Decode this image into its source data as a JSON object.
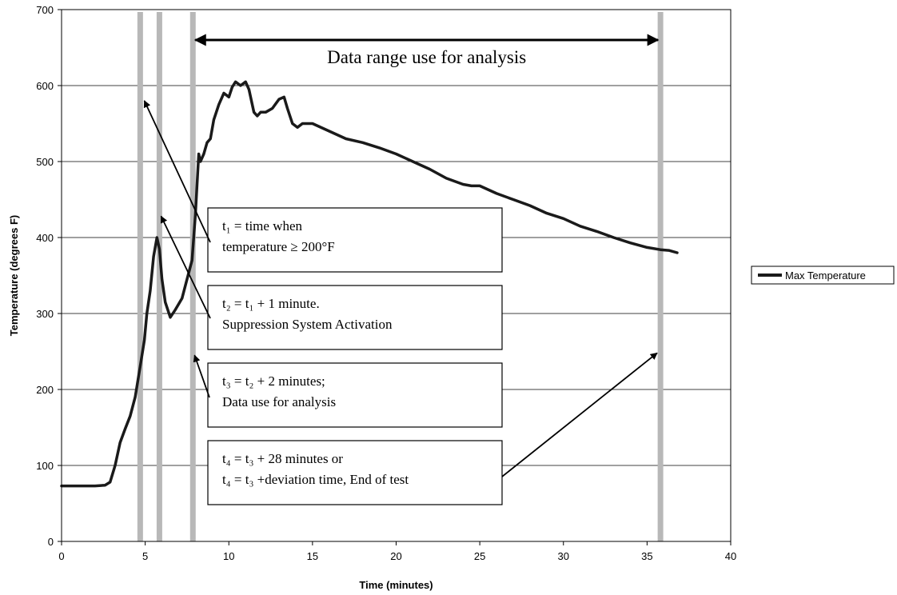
{
  "chart_data": {
    "type": "line",
    "xlabel": "Time (minutes)",
    "ylabel": "Temperature (degrees F)",
    "xlim": [
      0,
      40
    ],
    "ylim": [
      0,
      700
    ],
    "x_ticks": [
      0,
      5,
      10,
      15,
      20,
      25,
      30,
      35,
      40
    ],
    "y_ticks": [
      0,
      100,
      200,
      300,
      400,
      500,
      600,
      700
    ],
    "grid": "horizontal",
    "legend_position": "right",
    "series": [
      {
        "name": "Max Temperature",
        "color": "#1a1a1a",
        "x": [
          0,
          1,
          2,
          2.6,
          2.9,
          3.2,
          3.5,
          3.8,
          4.1,
          4.4,
          4.7,
          4.95,
          5.1,
          5.3,
          5.5,
          5.7,
          5.85,
          6.0,
          6.2,
          6.5,
          6.8,
          7.2,
          7.5,
          7.8,
          8.0,
          8.2,
          8.3,
          8.5,
          8.7,
          8.9,
          9.1,
          9.4,
          9.7,
          10.0,
          10.2,
          10.4,
          10.7,
          11.0,
          11.2,
          11.5,
          11.7,
          11.9,
          12.2,
          12.6,
          13.0,
          13.3,
          13.5,
          13.8,
          14.1,
          14.4,
          15.0,
          16.0,
          17.0,
          18.0,
          19.0,
          20.0,
          21.0,
          22.0,
          23.0,
          24.0,
          24.5,
          25.0,
          26.0,
          27.0,
          28.0,
          29.0,
          30.0,
          31.0,
          32.0,
          33.0,
          34.0,
          35.0,
          35.8,
          36.3,
          36.8
        ],
        "y": [
          73,
          73,
          73,
          74,
          78,
          100,
          130,
          148,
          165,
          190,
          230,
          265,
          300,
          330,
          375,
          400,
          385,
          345,
          315,
          295,
          305,
          320,
          345,
          370,
          430,
          510,
          500,
          510,
          525,
          530,
          555,
          575,
          590,
          585,
          598,
          605,
          600,
          605,
          595,
          565,
          560,
          565,
          565,
          570,
          582,
          585,
          570,
          550,
          545,
          550,
          550,
          540,
          530,
          525,
          518,
          510,
          500,
          490,
          478,
          470,
          468,
          468,
          458,
          450,
          442,
          432,
          425,
          415,
          408,
          400,
          393,
          387,
          384,
          383,
          380
        ]
      }
    ],
    "vertical_markers": [
      4.7,
      5.85,
      7.85,
      35.8
    ],
    "range_annotation": "Data range use for analysis",
    "annotation_boxes": [
      {
        "line1": "t₁ = time when",
        "line2": "temperature ≥ 200°F",
        "points_to": [
          4.95,
          580
        ]
      },
      {
        "line1": "t₂ = t₁ + 1 minute.",
        "line2": "Suppression System Activation",
        "points_to": [
          5.95,
          428
        ]
      },
      {
        "line1": "t₃ = t₂ + 2 minutes;",
        "line2": "Data use for analysis",
        "points_to": [
          7.95,
          245
        ]
      },
      {
        "line1": "t₄ = t₃ + 28 minutes or",
        "line2": "t₄ = t₃ +deviation time, End of test",
        "points_to": [
          35.6,
          248
        ]
      }
    ]
  }
}
